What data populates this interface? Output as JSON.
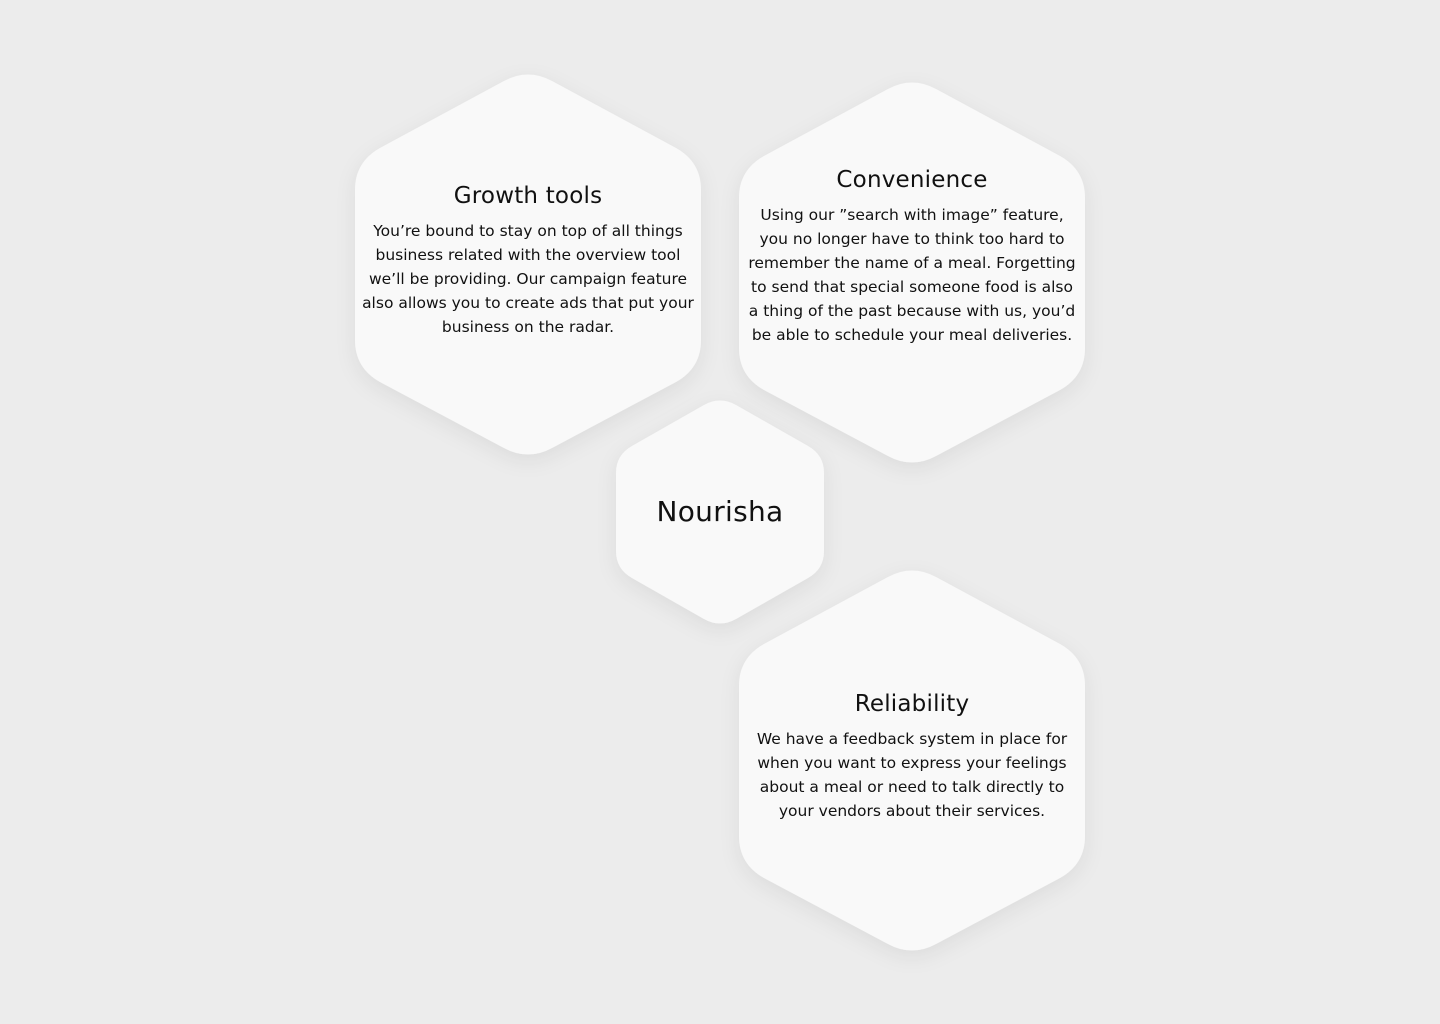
{
  "colors": {
    "background": "#ECECEC",
    "hexagon_fill": "#F9F9F9",
    "text": "#111111"
  },
  "brand": {
    "name": "Nourisha"
  },
  "features": [
    {
      "title": "Growth tools",
      "description": "You’re bound to stay on top of all things business related with the overview tool we’ll be providing. Our campaign feature also allows you to create ads that put your business on the radar."
    },
    {
      "title": "Convenience",
      "description": "Using our ”search with image” feature, you no longer have to think too hard to remember the name of a meal. Forgetting to send that special someone food is also a thing of the past because with us, you’d be able to schedule your meal deliveries."
    },
    {
      "title": "Reliability",
      "description": "We have a feedback system in place for when you want to express your feelings about a meal or need to talk directly to your vendors about their services."
    }
  ]
}
